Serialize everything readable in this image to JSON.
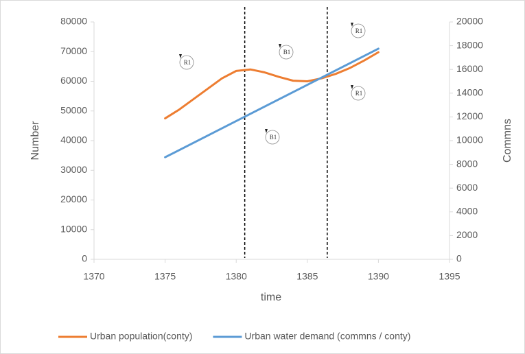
{
  "chart_data": {
    "type": "line",
    "x_label": "time",
    "y_label": "Number",
    "y2_label": "Commns",
    "xlim": [
      1370,
      1395
    ],
    "xticks": [
      1370,
      1375,
      1380,
      1385,
      1390,
      1395
    ],
    "ylim": [
      0,
      80000
    ],
    "yticks": [
      0,
      10000,
      20000,
      30000,
      40000,
      50000,
      60000,
      70000,
      80000
    ],
    "y2lim": [
      0,
      20000
    ],
    "y2ticks": [
      0,
      2000,
      4000,
      6000,
      8000,
      10000,
      12000,
      14000,
      16000,
      18000,
      20000
    ],
    "vlines": [
      1380.6,
      1386.4
    ],
    "annotations": [
      "R1",
      "B1",
      "R1",
      "R1",
      "B1"
    ],
    "legend": "bottom",
    "series": [
      {
        "name": "Urban population(conty)",
        "color": "#ed7d31",
        "x": [
          1375,
          1376,
          1377,
          1378,
          1379,
          1380,
          1381,
          1382,
          1383,
          1384,
          1385,
          1386,
          1387,
          1388,
          1389,
          1390
        ],
        "values": [
          47500,
          50500,
          54000,
          57500,
          61000,
          63500,
          64000,
          63000,
          61500,
          60200,
          60000,
          61000,
          62500,
          64500,
          67000,
          69800
        ]
      },
      {
        "name": "Urban water demand (commns / conty)",
        "color": "#5b9bd5",
        "axis": "y2",
        "x": [
          1375,
          1380,
          1385,
          1390
        ],
        "values": [
          8600,
          11650,
          14700,
          17750
        ]
      }
    ]
  }
}
